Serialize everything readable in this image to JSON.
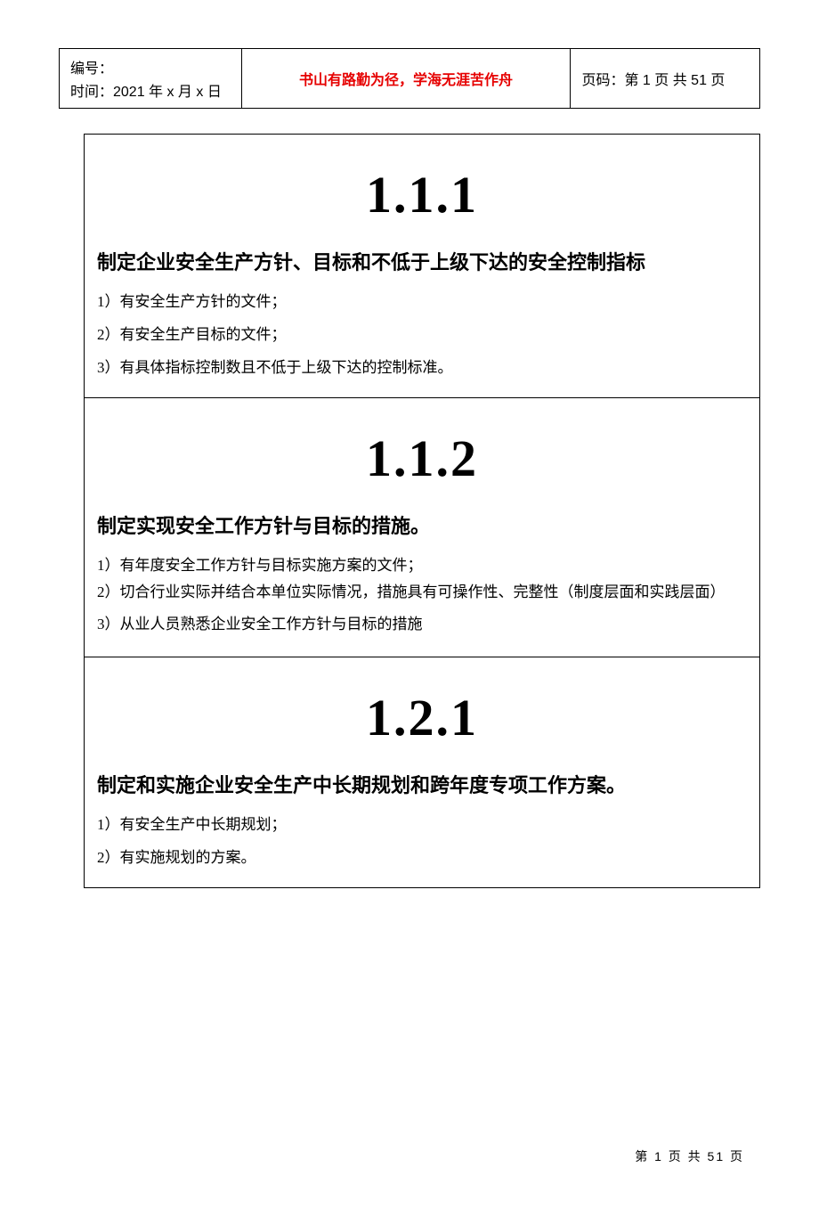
{
  "header": {
    "left": {
      "label_number": "编号：",
      "label_time": "时间：2021 年 x 月 x 日"
    },
    "center": "书山有路勤为径，学海无涯苦作舟",
    "right": "页码：第 1 页  共 51 页"
  },
  "sections": [
    {
      "number": "1.1.1",
      "title": "制定企业安全生产方针、目标和不低于上级下达的安全控制指标",
      "items": [
        "1）有安全生产方针的文件；",
        "2）有安全生产目标的文件；",
        "3）有具体指标控制数且不低于上级下达的控制标准。"
      ],
      "tight": false
    },
    {
      "number": "1.1.2",
      "title": "制定实现安全工作方针与目标的措施。",
      "items": [
        "1）有年度安全工作方针与目标实施方案的文件；",
        "2）切合行业实际并结合本单位实际情况，措施具有可操作性、完整性（制度层面和实践层面）",
        "3）从业人员熟悉企业安全工作方针与目标的措施"
      ],
      "tight": true
    },
    {
      "number": "1.2.1",
      "title": "制定和实施企业安全生产中长期规划和跨年度专项工作方案。",
      "items": [
        "1）有安全生产中长期规划；",
        "2）有实施规划的方案。"
      ],
      "tight": false
    }
  ],
  "footer": "第  1  页  共  51  页"
}
